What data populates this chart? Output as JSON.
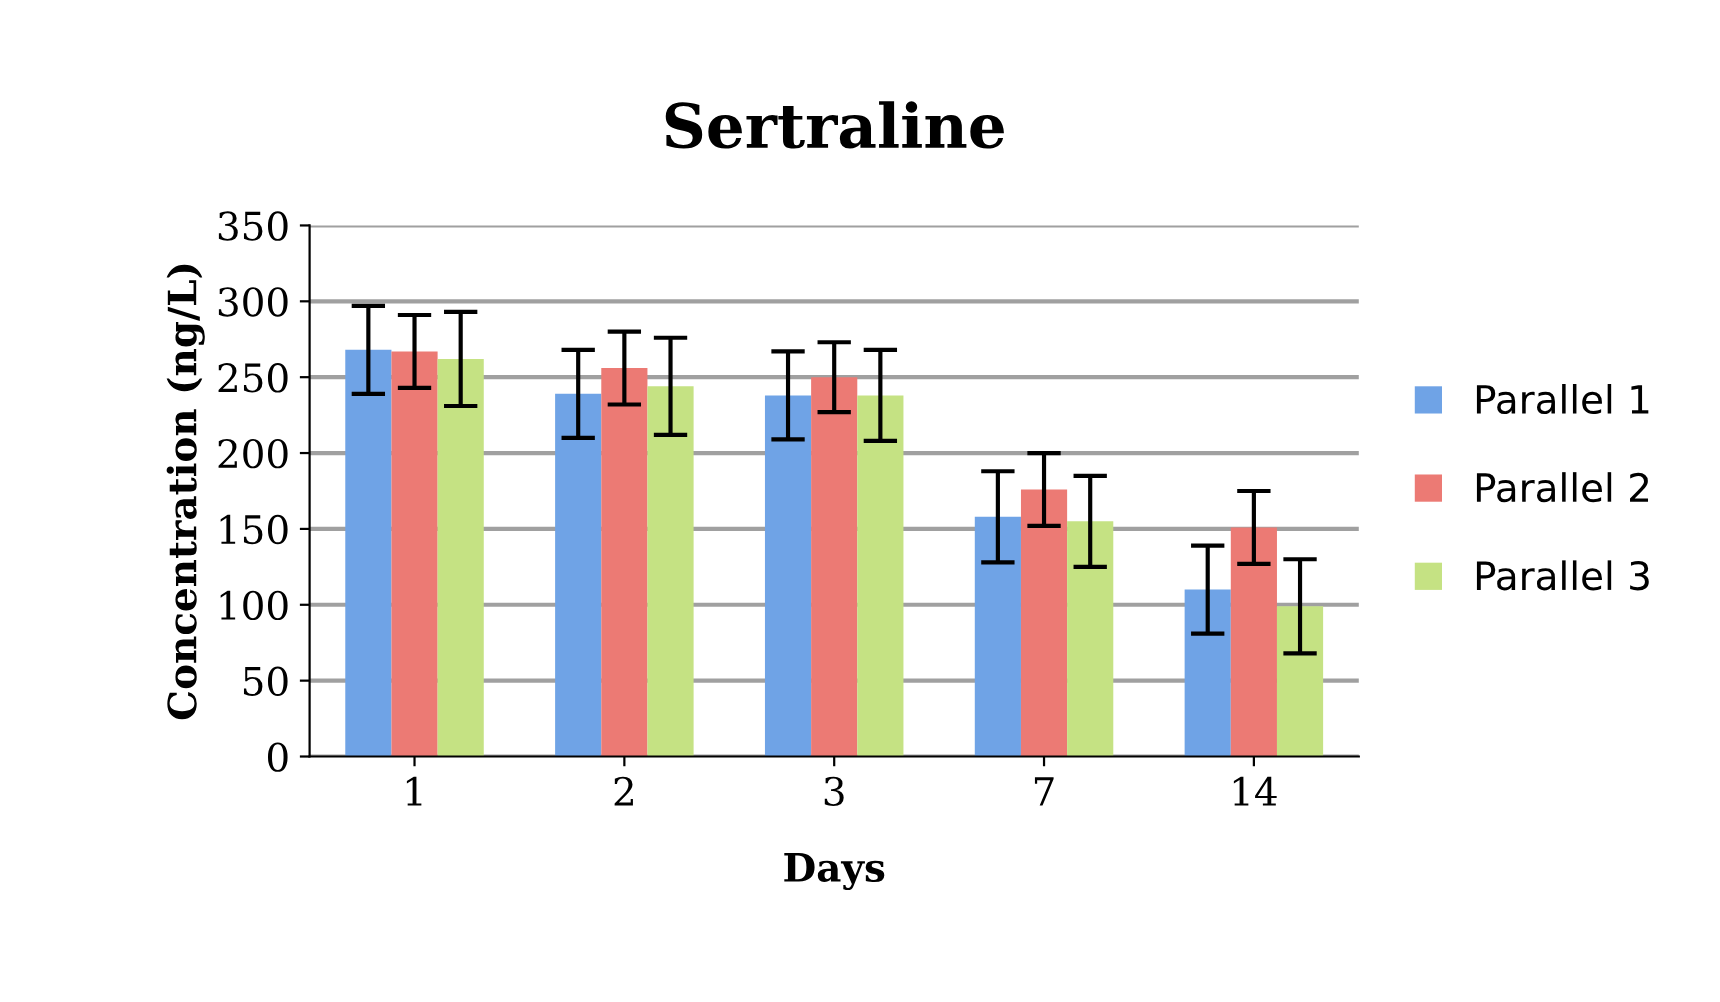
{
  "chart_data": {
    "type": "bar",
    "title": "Sertraline",
    "xlabel": "Days",
    "ylabel": "Concentration (ng/L)",
    "categories": [
      "1",
      "2",
      "3",
      "7",
      "14"
    ],
    "series": [
      {
        "name": "Parallel 1",
        "color": "#6fa3e6",
        "values": [
          268,
          239,
          238,
          158,
          110
        ],
        "errors": [
          29,
          29,
          29,
          30,
          29
        ]
      },
      {
        "name": "Parallel 2",
        "color": "#ec7a74",
        "values": [
          267,
          256,
          250,
          176,
          151
        ],
        "errors": [
          24,
          24,
          23,
          24,
          24
        ]
      },
      {
        "name": "Parallel 3",
        "color": "#c5e283",
        "values": [
          262,
          244,
          238,
          155,
          99
        ],
        "errors": [
          31,
          32,
          30,
          30,
          31
        ]
      }
    ],
    "ylim": [
      0,
      350
    ],
    "yticks": [
      0,
      50,
      100,
      150,
      200,
      250,
      300,
      350
    ],
    "grid": "y",
    "legend": "right"
  }
}
